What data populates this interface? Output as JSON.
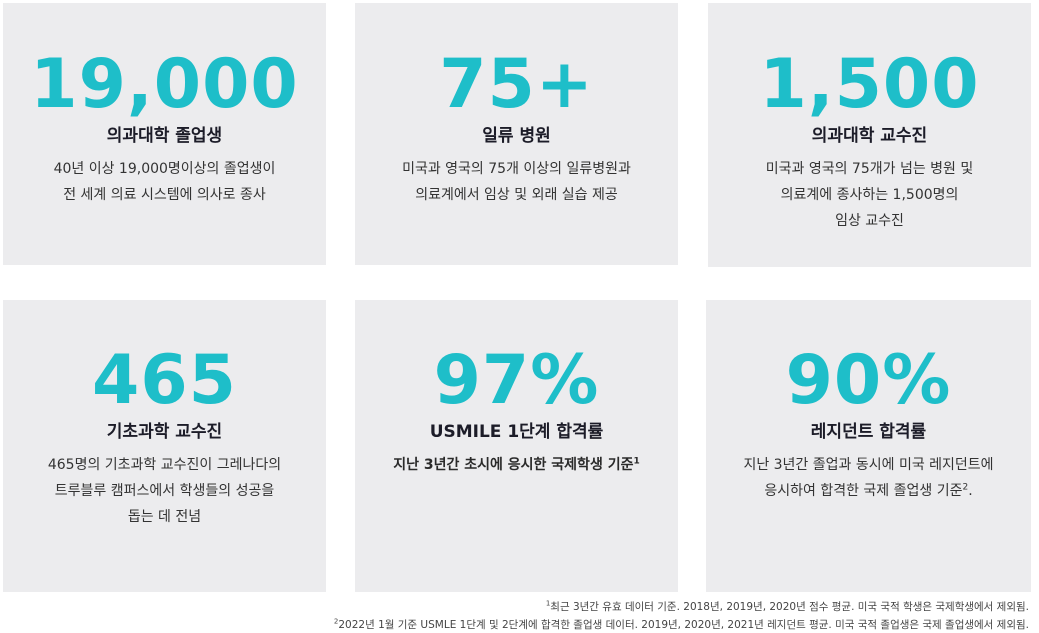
{
  "cards": [
    {
      "stat": "19,000",
      "label": "의과대학 졸업생",
      "desc": [
        "40년 이상 19,000명이상의 졸업생이",
        "전 세계 의료 시스템에 의사로 종사"
      ]
    },
    {
      "stat": "75+",
      "label": "일류 병원",
      "desc": [
        "미국과 영국의 75개 이상의 일류병원과",
        "의료계에서 임상 및 외래 실습 제공"
      ]
    },
    {
      "stat": "1,500",
      "label": "의과대학 교수진",
      "desc": [
        "미국과 영국의 75개가 넘는 병원 및",
        "의료계에 종사하는 1,500명의",
        "임상 교수진"
      ]
    },
    {
      "stat": "465",
      "label": "기초과학 교수진",
      "desc": [
        "465명의 기초과학 교수진이 그레나다의",
        "트루블루 캠퍼스에서 학생들의 성공을",
        "돕는 데 전념"
      ]
    },
    {
      "stat": "97%",
      "label": "USMILE 1단계 합격률",
      "desc": [
        "지난 3년간 초시에 응시한 국제학생 기준"
      ],
      "desc_sup": "1"
    },
    {
      "stat": "90%",
      "label": "레지던트 합격률",
      "desc": [
        "지난 3년간 졸업과 동시에 미국 레지던트에",
        "응시하여 합격한 국제 졸업생 기준"
      ],
      "desc_sup": "2",
      "desc_tail": "."
    }
  ],
  "footnotes": [
    {
      "mark": "1",
      "text": "최근 3년간 유효 데이터 기준. 2018년, 2019년, 2020년 점수 평균. 미국 국적 학생은 국제학생에서 제외됨."
    },
    {
      "mark": "2",
      "text": "2022년 1월 기준 USMLE 1단계 및 2단계에 합격한 졸업생 데이터. 2019년, 2020년, 2021년 레지던트 평균. 미국 국적 졸업생은 국제 졸업생에서 제외됨."
    }
  ]
}
